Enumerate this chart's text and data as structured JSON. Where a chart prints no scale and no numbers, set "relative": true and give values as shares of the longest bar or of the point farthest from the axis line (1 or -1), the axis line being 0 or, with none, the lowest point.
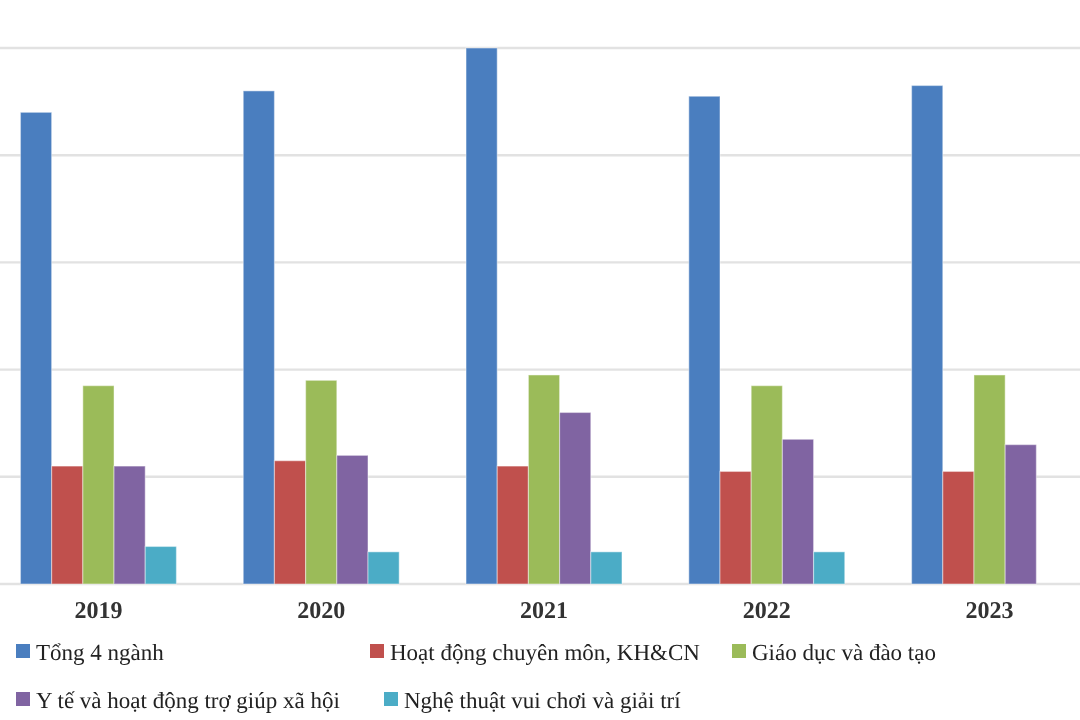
{
  "chart_data": {
    "type": "bar",
    "relative": true,
    "grid": "y",
    "legend": "bottom",
    "categories": [
      "2019",
      "2020",
      "2021",
      "2022",
      "2023"
    ],
    "series": [
      {
        "name": "Tổng 4 ngành",
        "color": "#4a7ebf",
        "values": [
          0.88,
          0.92,
          1,
          0.91,
          0.93
        ]
      },
      {
        "name": "Hoạt động chuyên môn, KH&CN",
        "color": "#c0504d",
        "values": [
          0.22,
          0.23,
          0.22,
          0.21,
          0.21
        ]
      },
      {
        "name": "Giáo dục và đào tạo",
        "color": "#9bbb59",
        "values": [
          0.37,
          0.38,
          0.39,
          0.37,
          0.39
        ]
      },
      {
        "name": "Y tế và hoạt động trợ giúp xã hội",
        "color": "#8064a2",
        "values": [
          0.22,
          0.24,
          0.32,
          0.27,
          0.26
        ]
      },
      {
        "name": "Nghệ thuật vui chơi và giải trí",
        "color": "#4bacc6",
        "values": [
          0.07,
          0.06,
          0.06,
          0.06,
          null
        ]
      }
    ]
  }
}
